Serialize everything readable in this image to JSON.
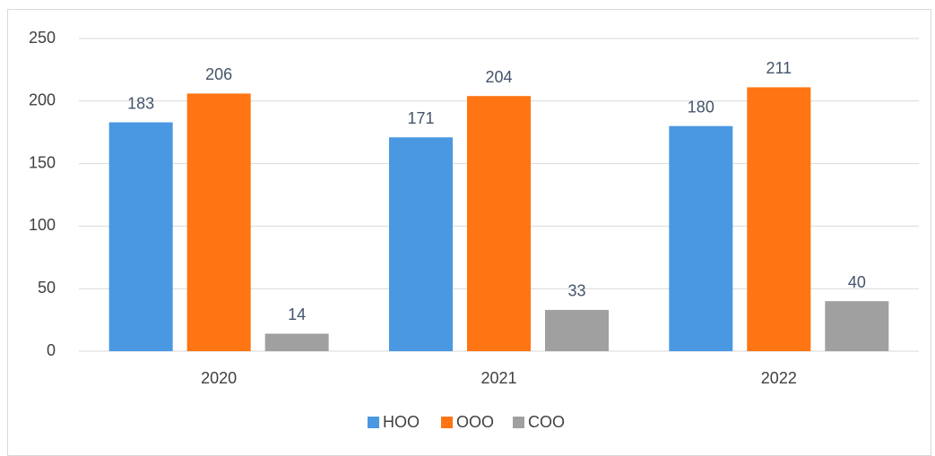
{
  "chart_data": {
    "type": "bar",
    "categories": [
      "2020",
      "2021",
      "2022"
    ],
    "series": [
      {
        "name": "HOO",
        "color": "#4a98e2",
        "values": [
          183,
          171,
          180
        ]
      },
      {
        "name": "OOO",
        "color": "#ff7413",
        "values": [
          206,
          204,
          211
        ]
      },
      {
        "name": "COO",
        "color": "#a0a0a0",
        "values": [
          14,
          33,
          40
        ]
      }
    ],
    "ylim": [
      0,
      250
    ],
    "yticks": [
      0,
      50,
      100,
      150,
      200,
      250
    ],
    "grid": true,
    "legend": "bottom"
  }
}
